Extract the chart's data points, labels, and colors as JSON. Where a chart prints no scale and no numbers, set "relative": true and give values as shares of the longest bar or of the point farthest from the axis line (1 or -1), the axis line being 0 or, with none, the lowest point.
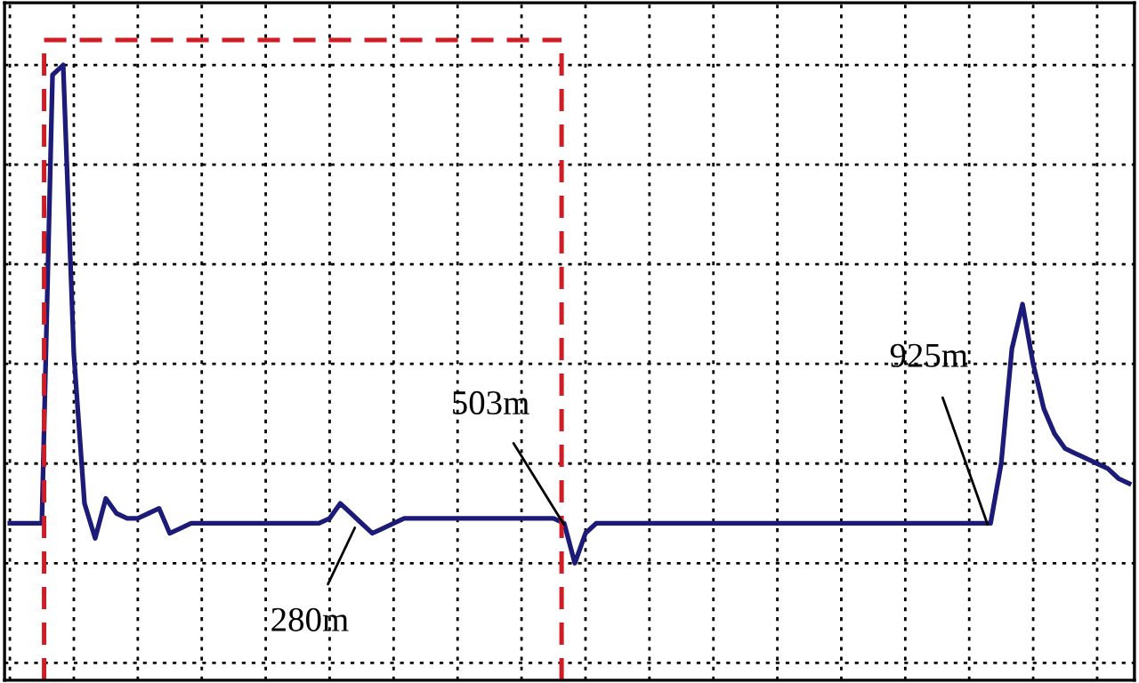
{
  "chart_data": {
    "type": "line",
    "relative": true,
    "grid": true,
    "marker": "none",
    "line_style": "solid",
    "categories": [
      null,
      null,
      null,
      null,
      null,
      null,
      null,
      null,
      null,
      null,
      null,
      null,
      null,
      null,
      null,
      null,
      null,
      null,
      null,
      null,
      null,
      null,
      null,
      null,
      null,
      null,
      null,
      null,
      null,
      null,
      null,
      null,
      null,
      null,
      null,
      null,
      null,
      null,
      null,
      null,
      null,
      null,
      null,
      null,
      null,
      null,
      null,
      null,
      null,
      null,
      null,
      null,
      null,
      null,
      null,
      null,
      null,
      null,
      null,
      null,
      null,
      null,
      null,
      null,
      null,
      null,
      null,
      null,
      null,
      null,
      null,
      null,
      null,
      null,
      null,
      null,
      null,
      null,
      null,
      null,
      null,
      null,
      null,
      null,
      null,
      null,
      null,
      null,
      null,
      null,
      null,
      null,
      null,
      null,
      null,
      null,
      null,
      null,
      null,
      null,
      null,
      null,
      null,
      null,
      null,
      null
    ],
    "series": [
      {
        "color": "#1c1c78",
        "values": [
          0.08,
          0.08,
          0.08,
          0.08,
          0.98,
          1.0,
          0.42,
          0.12,
          0.05,
          0.13,
          0.1,
          0.09,
          0.09,
          0.1,
          0.11,
          0.06,
          0.07,
          0.08,
          0.08,
          0.08,
          0.08,
          0.08,
          0.08,
          0.08,
          0.08,
          0.08,
          0.08,
          0.08,
          0.08,
          0.08,
          0.09,
          0.12,
          0.1,
          0.08,
          0.06,
          0.07,
          0.08,
          0.09,
          0.09,
          0.09,
          0.09,
          0.09,
          0.09,
          0.09,
          0.09,
          0.09,
          0.09,
          0.09,
          0.09,
          0.09,
          0.09,
          0.09,
          0.08,
          0.0,
          0.06,
          0.08,
          0.08,
          0.08,
          0.08,
          0.08,
          0.08,
          0.08,
          0.08,
          0.08,
          0.08,
          0.08,
          0.08,
          0.08,
          0.08,
          0.08,
          0.08,
          0.08,
          0.08,
          0.08,
          0.08,
          0.08,
          0.08,
          0.08,
          0.08,
          0.08,
          0.08,
          0.08,
          0.08,
          0.08,
          0.08,
          0.08,
          0.08,
          0.08,
          0.08,
          0.08,
          0.08,
          0.08,
          0.08,
          0.2,
          0.43,
          0.52,
          0.4,
          0.31,
          0.26,
          0.23,
          0.22,
          0.21,
          0.2,
          0.19,
          0.17,
          0.16
        ]
      }
    ],
    "annotations": [
      "280m",
      "503m",
      "925m"
    ]
  }
}
